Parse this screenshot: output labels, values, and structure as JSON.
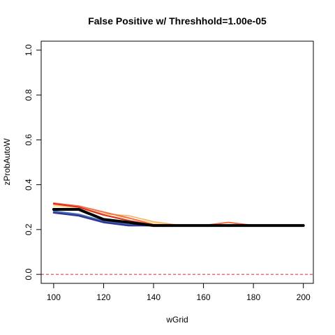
{
  "chart_data": {
    "type": "line",
    "title": "False Positive w/ Threshhold=1.00e-05",
    "xlabel": "wGrid",
    "ylabel": "zProbAutoW",
    "xlim": [
      95,
      204
    ],
    "ylim": [
      -0.04,
      1.04
    ],
    "x_ticks": [
      100,
      120,
      140,
      160,
      180,
      200
    ],
    "y_ticks": [
      0.0,
      0.2,
      0.4,
      0.6,
      0.8,
      1.0
    ],
    "y_tick_labels": [
      "0.0",
      "0.2",
      "0.4",
      "0.6",
      "0.8",
      "1.0"
    ],
    "x": [
      100,
      110,
      120,
      130,
      140,
      150,
      160,
      170,
      180,
      190,
      200
    ],
    "reference_line": {
      "y": 0.0,
      "color": "#d62728",
      "style": "dashed"
    },
    "grid": false,
    "series": [
      {
        "color": "#fee090",
        "width": 1.5,
        "values": [
          0.305,
          0.295,
          0.265,
          0.25,
          0.23,
          0.218,
          0.218,
          0.218,
          0.218,
          0.218,
          0.218
        ]
      },
      {
        "color": "#fdae61",
        "width": 1.5,
        "values": [
          0.31,
          0.3,
          0.27,
          0.262,
          0.235,
          0.22,
          0.218,
          0.218,
          0.218,
          0.218,
          0.218
        ]
      },
      {
        "color": "#f46d43",
        "width": 2,
        "values": [
          0.318,
          0.305,
          0.278,
          0.252,
          0.222,
          0.218,
          0.218,
          0.232,
          0.218,
          0.218,
          0.218
        ]
      },
      {
        "color": "#d73027",
        "width": 2,
        "values": [
          0.315,
          0.3,
          0.265,
          0.24,
          0.22,
          0.218,
          0.218,
          0.218,
          0.218,
          0.218,
          0.218
        ]
      },
      {
        "color": "#4575b4",
        "width": 2,
        "values": [
          0.282,
          0.268,
          0.238,
          0.222,
          0.218,
          0.218,
          0.218,
          0.218,
          0.218,
          0.218,
          0.218
        ]
      },
      {
        "color": "#313695",
        "width": 2.5,
        "values": [
          0.275,
          0.262,
          0.232,
          0.218,
          0.218,
          0.218,
          0.218,
          0.218,
          0.218,
          0.218,
          0.218
        ]
      },
      {
        "color": "#000000",
        "width": 4,
        "values": [
          0.29,
          0.29,
          0.245,
          0.232,
          0.218,
          0.218,
          0.218,
          0.218,
          0.218,
          0.218,
          0.218
        ]
      }
    ]
  }
}
